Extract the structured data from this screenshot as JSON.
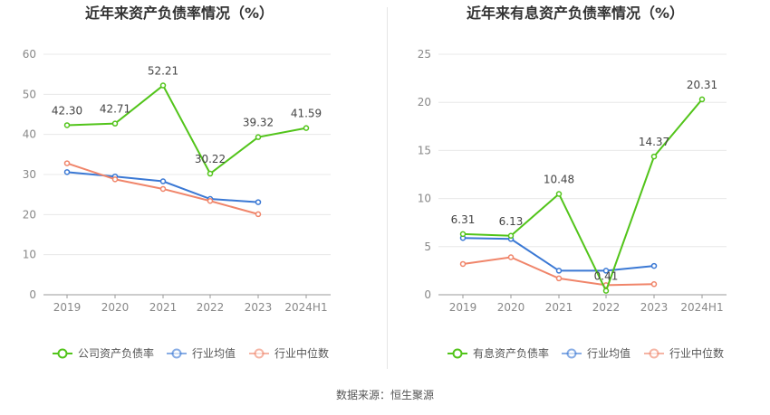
{
  "source_text": "数据来源：恒生聚源",
  "colors": {
    "main": "#52c41a",
    "avg": "#3a78d4",
    "median": "#f0856a"
  },
  "chart_data": [
    {
      "type": "line",
      "title": "近年来资产负债率情况（%）",
      "categories": [
        "2019",
        "2020",
        "2021",
        "2022",
        "2023",
        "2024H1"
      ],
      "ylim": [
        0,
        60
      ],
      "yticks": [
        "0",
        "10",
        "20",
        "30",
        "40",
        "50",
        "60"
      ],
      "grid": true,
      "legend_position": "bottom",
      "series": [
        {
          "name": "公司资产负债率",
          "values": [
            42.3,
            42.71,
            52.21,
            30.22,
            39.32,
            41.59
          ],
          "labels": [
            "42.30",
            "42.71",
            "52.21",
            "30.22",
            "39.32",
            "41.59"
          ]
        },
        {
          "name": "行业均值",
          "values": [
            30.6,
            29.5,
            28.3,
            23.9,
            23.1,
            null
          ]
        },
        {
          "name": "行业中位数",
          "values": [
            32.8,
            28.8,
            26.4,
            23.4,
            20.1,
            null
          ]
        }
      ]
    },
    {
      "type": "line",
      "title": "近年来有息资产负债率情况（%）",
      "categories": [
        "2019",
        "2020",
        "2021",
        "2022",
        "2023",
        "2024H1"
      ],
      "ylim": [
        0,
        25
      ],
      "yticks": [
        "0",
        "5",
        "10",
        "15",
        "20",
        "25"
      ],
      "grid": true,
      "legend_position": "bottom",
      "series": [
        {
          "name": "有息资产负债率",
          "values": [
            6.31,
            6.13,
            10.48,
            0.41,
            14.37,
            20.31
          ],
          "labels": [
            "6.31",
            "6.13",
            "10.48",
            "0.41",
            "14.37",
            "20.31"
          ]
        },
        {
          "name": "行业均值",
          "values": [
            5.9,
            5.8,
            2.5,
            2.5,
            3.0,
            null
          ]
        },
        {
          "name": "行业中位数",
          "values": [
            3.2,
            3.9,
            1.7,
            1.0,
            1.1,
            null
          ]
        }
      ]
    }
  ]
}
